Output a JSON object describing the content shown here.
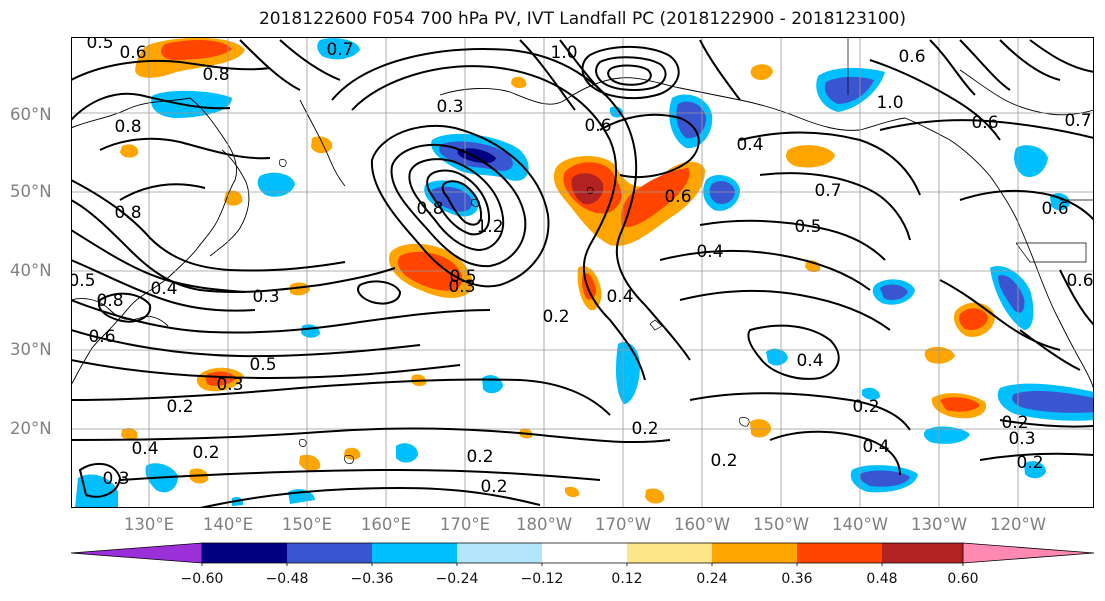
{
  "title": "2018122600 F054 700 hPa PV, IVT Landfall PC (2018122900 - 2018123100)",
  "lat_labels": [
    "60°N",
    "50°N",
    "40°N",
    "30°N",
    "20°N"
  ],
  "lon_labels": [
    "130°E",
    "140°E",
    "150°E",
    "160°E",
    "170°E",
    "180°W",
    "170°W",
    "160°W",
    "150°W",
    "140°W",
    "130°W",
    "120°W"
  ],
  "colorbar": {
    "tick_labels": [
      "−0.60",
      "−0.48",
      "−0.36",
      "−0.24",
      "−0.12",
      "0.12",
      "0.24",
      "0.36",
      "0.48",
      "0.60"
    ],
    "colors": [
      "#9b30d9",
      "#000080",
      "#3a55d0",
      "#00bfff",
      "#b3e5fc",
      "#ffffff",
      "#fde68a",
      "#ffa500",
      "#ff4500",
      "#b22222",
      "#ff89b0"
    ]
  },
  "contour_labels": [
    "0.5",
    "0.6",
    "0.7",
    "0.8",
    "1.0",
    "0.3",
    "0.6",
    "0.4",
    "1.0",
    "0.6",
    "0.7",
    "0.8",
    "0.8",
    "0.8",
    "1.2",
    "0.7",
    "0.6",
    "0.4",
    "0.5",
    "0.6",
    "0.4",
    "0.5",
    "0.3",
    "0.4",
    "0.8",
    "0.5",
    "0.6",
    "0.3",
    "0.5",
    "0.3",
    "0.2",
    "0.2",
    "0.2",
    "0.4",
    "0.2",
    "0.4",
    "0.2",
    "0.2",
    "0.2",
    "0.2",
    "0.4",
    "0.3",
    "0.2",
    "0.3",
    "0.2",
    "0.6",
    "0.6"
  ]
}
